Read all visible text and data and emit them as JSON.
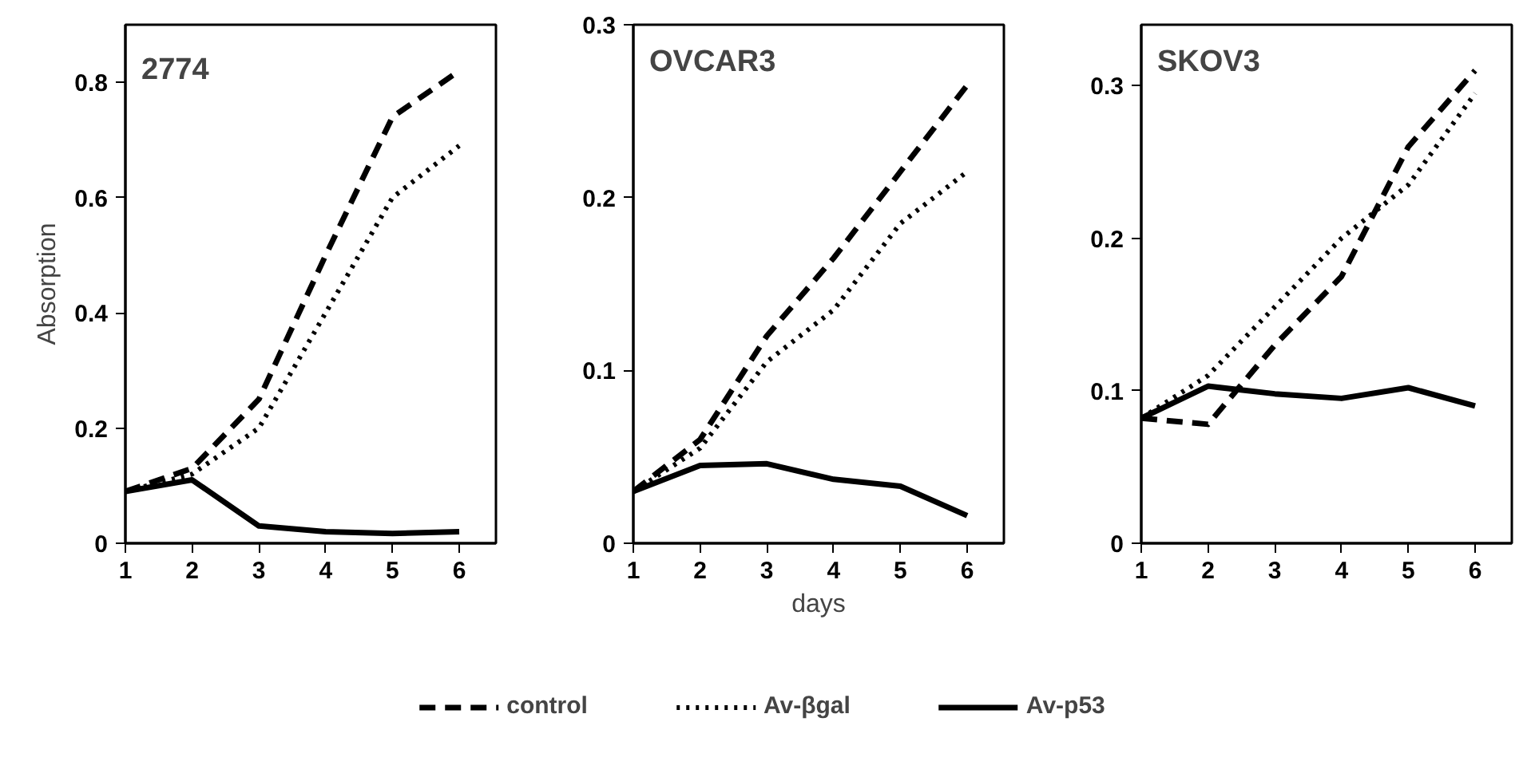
{
  "chart_data": [
    {
      "type": "line",
      "title": "2774",
      "ylabel": "Absorption",
      "x": [
        1,
        2,
        3,
        4,
        5,
        6
      ],
      "xlim": [
        1,
        6.55
      ],
      "xticks": [
        1,
        2,
        3,
        4,
        5,
        6
      ],
      "ylim": [
        0,
        0.9
      ],
      "yticks": [
        0,
        0.2,
        0.4,
        0.6,
        0.8
      ],
      "grid": false,
      "marker": "none",
      "series": [
        {
          "color": "#000000",
          "line_style": "dashed",
          "values": [
            0.09,
            0.13,
            0.25,
            0.5,
            0.74,
            0.82
          ]
        },
        {
          "color": "#000000",
          "line_style": "dotted",
          "values": [
            0.09,
            0.12,
            0.2,
            0.4,
            0.6,
            0.69
          ]
        },
        {
          "color": "#000000",
          "line_style": "solid",
          "values": [
            0.09,
            0.11,
            0.03,
            0.02,
            0.017,
            0.02
          ]
        }
      ]
    },
    {
      "type": "line",
      "title": "OVCAR3",
      "xlabel": "days",
      "x": [
        1,
        2,
        3,
        4,
        5,
        6
      ],
      "xlim": [
        1,
        6.55
      ],
      "xticks": [
        1,
        2,
        3,
        4,
        5,
        6
      ],
      "ylim": [
        0,
        0.3
      ],
      "yticks": [
        0,
        0.1,
        0.2,
        0.3
      ],
      "grid": false,
      "marker": "none",
      "legend": "bottom",
      "series": [
        {
          "name": "control",
          "color": "#000000",
          "line_style": "dashed",
          "values": [
            0.03,
            0.06,
            0.12,
            0.165,
            0.215,
            0.265
          ]
        },
        {
          "name": "Av-βgal",
          "color": "#000000",
          "line_style": "dotted",
          "values": [
            0.03,
            0.055,
            0.105,
            0.135,
            0.185,
            0.215
          ]
        },
        {
          "name": "Av-p53",
          "color": "#000000",
          "line_style": "solid",
          "values": [
            0.03,
            0.045,
            0.046,
            0.037,
            0.033,
            0.016
          ]
        }
      ]
    },
    {
      "type": "line",
      "title": "SKOV3",
      "x": [
        1,
        2,
        3,
        4,
        5,
        6
      ],
      "xlim": [
        1,
        6.55
      ],
      "xticks": [
        1,
        2,
        3,
        4,
        5,
        6
      ],
      "ylim": [
        0,
        0.34
      ],
      "yticks": [
        0,
        0.1,
        0.2,
        0.3
      ],
      "grid": false,
      "marker": "none",
      "series": [
        {
          "color": "#000000",
          "line_style": "dashed",
          "values": [
            0.082,
            0.078,
            0.13,
            0.175,
            0.26,
            0.31
          ]
        },
        {
          "color": "#000000",
          "line_style": "dotted",
          "values": [
            0.082,
            0.11,
            0.155,
            0.2,
            0.235,
            0.295
          ]
        },
        {
          "color": "#000000",
          "line_style": "solid",
          "values": [
            0.082,
            0.103,
            0.098,
            0.095,
            0.102,
            0.09
          ]
        }
      ]
    }
  ]
}
